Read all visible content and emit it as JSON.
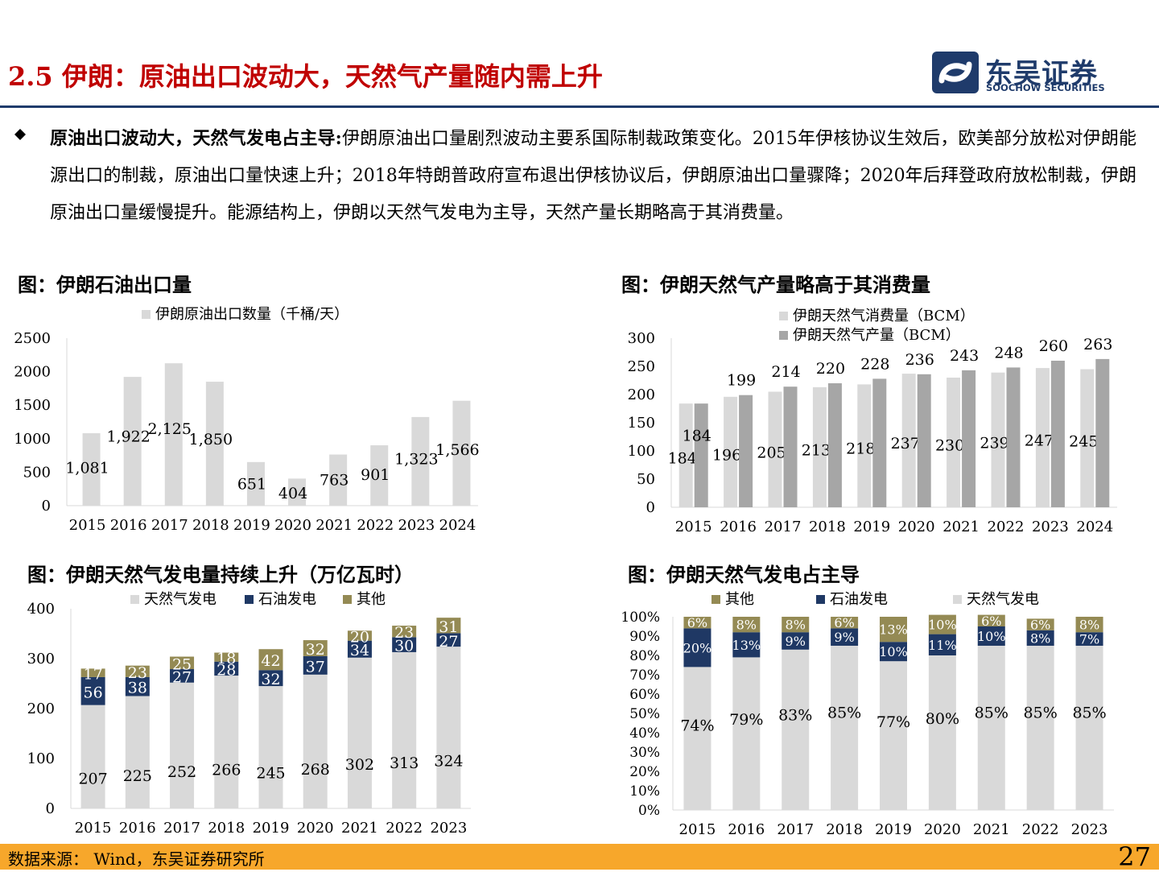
{
  "header": {
    "title": "2.5 伊朗：原油出口波动大，天然气产量随内需上升",
    "logo_cn": "东吴证券",
    "logo_en": "SOOCHOW SECURITIES"
  },
  "body": {
    "bullet_lead": "原油出口波动大，天然气发电占主导:",
    "bullet_text": "伊朗原油出口量剧烈波动主要系国际制裁政策变化。2015年伊核协议生效后，欧美部分放松对伊朗能源出口的制裁，原油出口量快速上升；2018年特朗普政府宣布退出伊核协议后，伊朗原油出口量骤降；2020年后拜登政府放松制裁，伊朗原油出口量缓慢提升。能源结构上，伊朗以天然气发电为主导，天然产量长期略高于其消费量。"
  },
  "figures": {
    "fig1_title": "图：伊朗石油出口量",
    "fig2_title": "图：伊朗天然气产量略高于其消费量",
    "fig3_title": "图：伊朗天然气发电量持续上升（万亿瓦时）",
    "fig4_title": "图：伊朗天然气发电占主导"
  },
  "footer": {
    "source": "数据来源：  Wind，东吴证券研究所",
    "page": "27"
  },
  "colors": {
    "title_red": "#c00000",
    "brand_navy": "#1f3b6b",
    "footer_orange": "#f7a72b",
    "bar_light": "#d9d9d9",
    "bar_mid": "#a6a6a6",
    "bar_navy": "#1f3864",
    "bar_olive": "#948a54"
  },
  "chart_data": [
    {
      "id": "oil_exports",
      "type": "bar",
      "categories": [
        "2015",
        "2016",
        "2017",
        "2018",
        "2019",
        "2020",
        "2021",
        "2022",
        "2023",
        "2024"
      ],
      "series": [
        {
          "name": "伊朗原油出口数量（千桶/天）",
          "values": [
            1081,
            1922,
            2125,
            1850,
            651,
            404,
            763,
            901,
            1323,
            1566
          ],
          "labels": [
            "1,081",
            "1,922",
            "2,125",
            "1,850",
            "651",
            "404",
            "763",
            "901",
            "1,323",
            "1,566"
          ]
        }
      ],
      "ylim": [
        0,
        2500
      ],
      "yticks": [
        0,
        500,
        1000,
        1500,
        2000,
        2500
      ],
      "legend": "top",
      "grid": false
    },
    {
      "id": "gas_prod_cons",
      "type": "bar",
      "categories": [
        "2015",
        "2016",
        "2017",
        "2018",
        "2019",
        "2020",
        "2021",
        "2022",
        "2023",
        "2024"
      ],
      "series": [
        {
          "name": "伊朗天然气消费量（BCM）",
          "values": [
            184,
            196,
            205,
            213,
            218,
            237,
            230,
            239,
            247,
            245
          ]
        },
        {
          "name": "伊朗天然气产量（BCM）",
          "values": [
            184,
            199,
            214,
            220,
            228,
            236,
            243,
            248,
            260,
            263
          ]
        }
      ],
      "ylim": [
        0,
        300
      ],
      "yticks": [
        0,
        50,
        100,
        150,
        200,
        250,
        300
      ],
      "legend": "top",
      "grid": false
    },
    {
      "id": "power_generation",
      "type": "bar",
      "stacked": true,
      "categories": [
        "2015",
        "2016",
        "2017",
        "2018",
        "2019",
        "2020",
        "2021",
        "2022",
        "2023"
      ],
      "series": [
        {
          "name": "天然气发电",
          "values": [
            207,
            225,
            252,
            266,
            245,
            268,
            302,
            313,
            324
          ]
        },
        {
          "name": "石油发电",
          "values": [
            56,
            38,
            27,
            28,
            32,
            37,
            34,
            30,
            27
          ]
        },
        {
          "name": "其他",
          "values": [
            17,
            23,
            25,
            18,
            42,
            32,
            20,
            23,
            31
          ]
        }
      ],
      "ylim": [
        0,
        400
      ],
      "yticks": [
        0,
        100,
        200,
        300,
        400
      ],
      "legend": "top",
      "grid": false
    },
    {
      "id": "power_share",
      "type": "bar",
      "stacked": true,
      "percent": true,
      "categories": [
        "2015",
        "2016",
        "2017",
        "2018",
        "2019",
        "2020",
        "2021",
        "2022",
        "2023"
      ],
      "series": [
        {
          "name": "天然气发电",
          "values": [
            74,
            79,
            83,
            85,
            77,
            80,
            85,
            85,
            85
          ]
        },
        {
          "name": "石油发电",
          "values": [
            20,
            13,
            9,
            9,
            10,
            11,
            10,
            8,
            7
          ]
        },
        {
          "name": "其他",
          "values": [
            6,
            8,
            8,
            6,
            13,
            10,
            6,
            6,
            8
          ]
        }
      ],
      "legend_order": [
        "其他",
        "石油发电",
        "天然气发电"
      ],
      "ylim": [
        0,
        100
      ],
      "yticks": [
        "0%",
        "10%",
        "20%",
        "30%",
        "40%",
        "50%",
        "60%",
        "70%",
        "80%",
        "90%",
        "100%"
      ],
      "legend": "top",
      "grid": false
    }
  ]
}
